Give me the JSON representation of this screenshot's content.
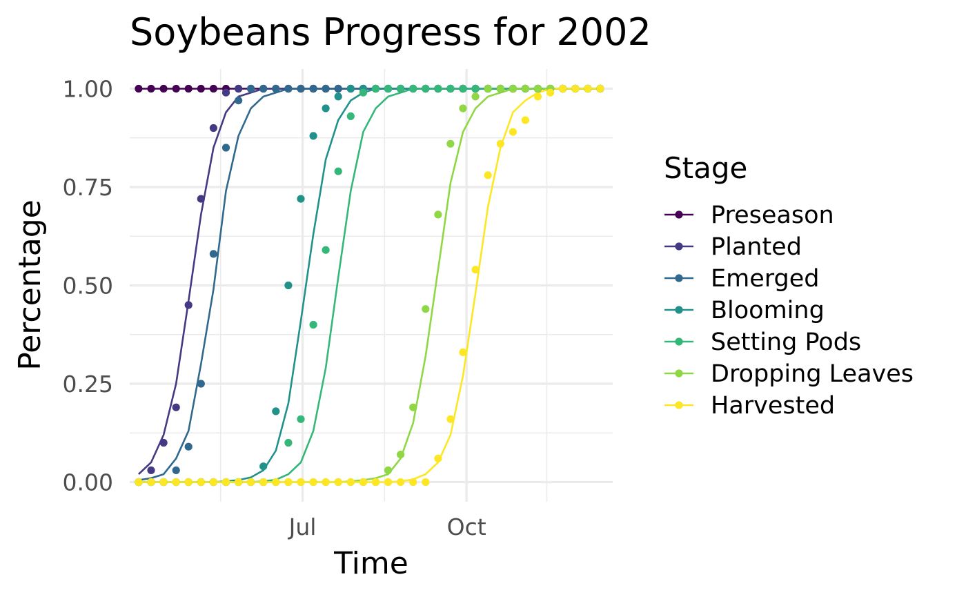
{
  "chart_data": {
    "type": "line",
    "title": "Soybeans Progress for 2002",
    "xlabel": "Time",
    "ylabel": "Percentage",
    "x_axis": {
      "type": "date",
      "range": [
        "2002-03-26",
        "2002-12-22"
      ],
      "ticks": [
        {
          "date": "2002-07-01",
          "label": "Jul"
        },
        {
          "date": "2002-10-01",
          "label": "Oct"
        }
      ],
      "minor_ticks": [
        "2002-05-16",
        "2002-08-16",
        "2002-11-15"
      ]
    },
    "y_axis": {
      "range": [
        -0.05,
        1.05
      ],
      "ticks": [
        {
          "value": 0,
          "label": "0.00"
        },
        {
          "value": 0.25,
          "label": "0.25"
        },
        {
          "value": 0.5,
          "label": "0.50"
        },
        {
          "value": 0.75,
          "label": "0.75"
        },
        {
          "value": 1,
          "label": "1.00"
        }
      ],
      "minor_ticks": [
        0.125,
        0.375,
        0.625,
        0.875
      ]
    },
    "grid": true,
    "legend": {
      "title": "Stage",
      "position": "right"
    },
    "x_dates": [
      "2002-03-31",
      "2002-04-07",
      "2002-04-14",
      "2002-04-21",
      "2002-04-28",
      "2002-05-05",
      "2002-05-12",
      "2002-05-19",
      "2002-05-26",
      "2002-06-02",
      "2002-06-09",
      "2002-06-16",
      "2002-06-23",
      "2002-06-30",
      "2002-07-07",
      "2002-07-14",
      "2002-07-21",
      "2002-07-28",
      "2002-08-04",
      "2002-08-11",
      "2002-08-18",
      "2002-08-25",
      "2002-09-01",
      "2002-09-08",
      "2002-09-15",
      "2002-09-22",
      "2002-09-29",
      "2002-10-06",
      "2002-10-13",
      "2002-10-20",
      "2002-10-27",
      "2002-11-03",
      "2002-11-10",
      "2002-11-17",
      "2002-11-24",
      "2002-12-01",
      "2002-12-08",
      "2002-12-15"
    ],
    "series": [
      {
        "name": "Preseason",
        "color": "#440154",
        "points": [
          1,
          1,
          1,
          1,
          1,
          1,
          1,
          1,
          1,
          1,
          1,
          1,
          1,
          1,
          1,
          1,
          1,
          1,
          1,
          1,
          1,
          1,
          1,
          1,
          1,
          1,
          1,
          1,
          1,
          1,
          1,
          1,
          1,
          1,
          1,
          1,
          1,
          1
        ],
        "fit": [
          1,
          1,
          1,
          1,
          1,
          1,
          1,
          1,
          1,
          1,
          1,
          1,
          1,
          1,
          1,
          1,
          1,
          1,
          1,
          1,
          1,
          1,
          1,
          1,
          1,
          1,
          1,
          1,
          1,
          1,
          1,
          1,
          1,
          1,
          1,
          1,
          1,
          1
        ]
      },
      {
        "name": "Planted",
        "color": "#443a83",
        "points": [
          0,
          0.03,
          0.1,
          0.19,
          0.45,
          0.72,
          0.9,
          0.99,
          1,
          1,
          1,
          1,
          1,
          1,
          1,
          1,
          1,
          1,
          1,
          1,
          1,
          1,
          1,
          1,
          1,
          1,
          1,
          1,
          1,
          1,
          1,
          1,
          1,
          1,
          1,
          1,
          1,
          1
        ],
        "fit": [
          0.02,
          0.05,
          0.12,
          0.25,
          0.46,
          0.68,
          0.85,
          0.94,
          0.98,
          0.99,
          1,
          1,
          1,
          1,
          1,
          1,
          1,
          1,
          1,
          1,
          1,
          1,
          1,
          1,
          1,
          1,
          1,
          1,
          1,
          1,
          1,
          1,
          1,
          1,
          1,
          1,
          1,
          1
        ]
      },
      {
        "name": "Emerged",
        "color": "#31688e",
        "points": [
          0,
          0,
          0,
          0.03,
          0.09,
          0.25,
          0.58,
          0.85,
          0.97,
          1,
          1,
          1,
          1,
          1,
          1,
          1,
          1,
          1,
          1,
          1,
          1,
          1,
          1,
          1,
          1,
          1,
          1,
          1,
          1,
          1,
          1,
          1,
          1,
          1,
          1,
          1,
          1,
          1
        ],
        "fit": [
          0.005,
          0.01,
          0.02,
          0.06,
          0.13,
          0.3,
          0.49,
          0.74,
          0.88,
          0.95,
          0.98,
          0.99,
          1,
          1,
          1,
          1,
          1,
          1,
          1,
          1,
          1,
          1,
          1,
          1,
          1,
          1,
          1,
          1,
          1,
          1,
          1,
          1,
          1,
          1,
          1,
          1,
          1,
          1
        ]
      },
      {
        "name": "Blooming",
        "color": "#21918c",
        "points": [
          0,
          0,
          0,
          0,
          0,
          0,
          0,
          0,
          0,
          0,
          0.04,
          0.18,
          0.5,
          0.72,
          0.88,
          0.95,
          0.98,
          1,
          1,
          1,
          1,
          1,
          1,
          1,
          1,
          1,
          1,
          1,
          1,
          1,
          1,
          1,
          1,
          1,
          1,
          1,
          1,
          1
        ],
        "fit": [
          0,
          0,
          0,
          0,
          0,
          0,
          0,
          0.002,
          0.005,
          0.012,
          0.03,
          0.08,
          0.2,
          0.41,
          0.63,
          0.82,
          0.92,
          0.97,
          0.99,
          1,
          1,
          1,
          1,
          1,
          1,
          1,
          1,
          1,
          1,
          1,
          1,
          1,
          1,
          1,
          1,
          1,
          1,
          1
        ]
      },
      {
        "name": "Setting Pods",
        "color": "#35b779",
        "points": [
          0,
          0,
          0,
          0,
          0,
          0,
          0,
          0,
          0,
          0,
          0,
          0,
          0.1,
          0.16,
          0.4,
          0.59,
          0.79,
          0.93,
          0.99,
          1,
          1,
          1,
          1,
          1,
          1,
          1,
          1,
          1,
          1,
          1,
          1,
          1,
          1,
          1,
          1,
          1,
          1,
          1
        ],
        "fit": [
          0,
          0,
          0,
          0,
          0,
          0,
          0,
          0,
          0,
          0,
          0.002,
          0.006,
          0.02,
          0.05,
          0.13,
          0.29,
          0.52,
          0.74,
          0.89,
          0.95,
          0.98,
          0.99,
          1,
          1,
          1,
          1,
          1,
          1,
          1,
          1,
          1,
          1,
          1,
          1,
          1,
          1,
          1,
          1
        ]
      },
      {
        "name": "Dropping Leaves",
        "color": "#8fd744",
        "points": [
          0,
          0,
          0,
          0,
          0,
          0,
          0,
          0,
          0,
          0,
          0,
          0,
          0,
          0,
          0,
          0,
          0,
          0,
          0,
          0,
          0.03,
          0.07,
          0.19,
          0.44,
          0.68,
          0.86,
          0.95,
          0.98,
          1,
          1,
          1,
          1,
          1,
          1,
          1,
          1,
          1,
          1
        ],
        "fit": [
          0,
          0,
          0,
          0,
          0,
          0,
          0,
          0,
          0,
          0,
          0,
          0,
          0,
          0,
          0,
          0,
          0,
          0.002,
          0.005,
          0.01,
          0.02,
          0.06,
          0.15,
          0.32,
          0.54,
          0.76,
          0.89,
          0.95,
          0.98,
          0.99,
          1,
          1,
          1,
          1,
          1,
          1,
          1,
          1
        ]
      },
      {
        "name": "Harvested",
        "color": "#fde725",
        "points": [
          0,
          0,
          0,
          0,
          0,
          0,
          0,
          0,
          0,
          0,
          0,
          0,
          0,
          0,
          0,
          0,
          0,
          0,
          0,
          0,
          0,
          0,
          0,
          0,
          0.06,
          0.16,
          0.33,
          0.54,
          0.78,
          0.86,
          0.89,
          0.92,
          0.98,
          0.99,
          1,
          1,
          1,
          1
        ],
        "fit": [
          0,
          0,
          0,
          0,
          0,
          0,
          0,
          0,
          0,
          0,
          0,
          0,
          0,
          0,
          0,
          0,
          0,
          0,
          0,
          0,
          0,
          0.002,
          0.007,
          0.02,
          0.05,
          0.12,
          0.27,
          0.48,
          0.7,
          0.85,
          0.94,
          0.97,
          0.99,
          1,
          1,
          1,
          1,
          1
        ]
      }
    ]
  }
}
